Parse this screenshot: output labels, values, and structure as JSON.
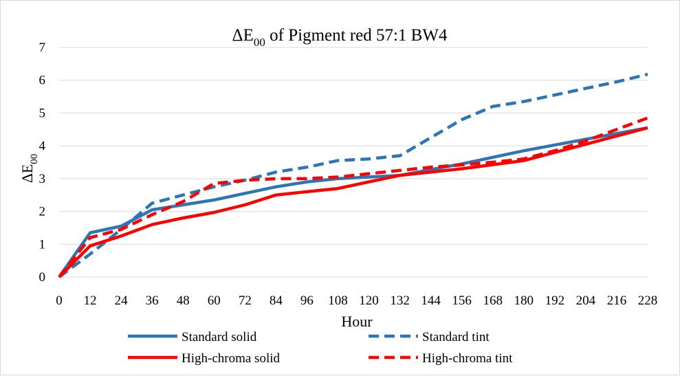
{
  "chart_data": {
    "type": "line",
    "title": {
      "main": "ΔE",
      "sub": "00",
      "rest": " of Pigment red 57:1 BW4"
    },
    "xlabel": "Hour",
    "ylabel": {
      "main": "ΔE",
      "sub": "00"
    },
    "x": [
      0,
      12,
      24,
      36,
      48,
      60,
      72,
      84,
      96,
      108,
      120,
      132,
      144,
      156,
      168,
      180,
      192,
      204,
      216,
      228
    ],
    "xlim": [
      0,
      228
    ],
    "ylim": [
      0,
      7
    ],
    "yticks": [
      0,
      1,
      2,
      3,
      4,
      5,
      6,
      7
    ],
    "grid": "horizontal",
    "legend_position": "bottom",
    "series": [
      {
        "name": "Standard solid",
        "color": "#2e75b6",
        "dash": "solid",
        "points": [
          [
            0,
            0
          ],
          [
            12,
            1.35
          ],
          [
            24,
            1.55
          ],
          [
            36,
            2.05
          ],
          [
            48,
            2.2
          ],
          [
            60,
            2.35
          ],
          [
            72,
            2.55
          ],
          [
            84,
            2.75
          ],
          [
            96,
            2.9
          ],
          [
            108,
            3.0
          ],
          [
            132,
            3.1
          ],
          [
            156,
            3.45
          ],
          [
            180,
            3.85
          ],
          [
            204,
            4.2
          ],
          [
            228,
            4.55
          ]
        ]
      },
      {
        "name": "Standard tint",
        "color": "#2e75b6",
        "dash": "dashed",
        "points": [
          [
            0,
            0
          ],
          [
            12,
            0.7
          ],
          [
            24,
            1.45
          ],
          [
            36,
            2.25
          ],
          [
            48,
            2.5
          ],
          [
            60,
            2.75
          ],
          [
            72,
            2.95
          ],
          [
            84,
            3.2
          ],
          [
            96,
            3.35
          ],
          [
            108,
            3.55
          ],
          [
            120,
            3.6
          ],
          [
            132,
            3.7
          ],
          [
            144,
            4.25
          ],
          [
            156,
            4.8
          ],
          [
            168,
            5.2
          ],
          [
            180,
            5.35
          ],
          [
            192,
            5.55
          ],
          [
            204,
            5.75
          ],
          [
            216,
            5.95
          ],
          [
            228,
            6.18
          ]
        ]
      },
      {
        "name": "High-chroma solid",
        "color": "#ff0000",
        "dash": "solid",
        "points": [
          [
            0,
            0
          ],
          [
            12,
            0.95
          ],
          [
            24,
            1.25
          ],
          [
            36,
            1.6
          ],
          [
            48,
            1.8
          ],
          [
            60,
            1.97
          ],
          [
            72,
            2.2
          ],
          [
            84,
            2.5
          ],
          [
            96,
            2.6
          ],
          [
            108,
            2.7
          ],
          [
            120,
            2.9
          ],
          [
            132,
            3.1
          ],
          [
            156,
            3.3
          ],
          [
            180,
            3.55
          ],
          [
            204,
            4.05
          ],
          [
            228,
            4.55
          ]
        ]
      },
      {
        "name": "High-chroma tint",
        "color": "#ff0000",
        "dash": "dashed",
        "points": [
          [
            0,
            0
          ],
          [
            12,
            1.2
          ],
          [
            24,
            1.45
          ],
          [
            36,
            1.9
          ],
          [
            48,
            2.3
          ],
          [
            60,
            2.85
          ],
          [
            72,
            2.95
          ],
          [
            84,
            3.0
          ],
          [
            96,
            3.0
          ],
          [
            108,
            3.05
          ],
          [
            120,
            3.15
          ],
          [
            132,
            3.25
          ],
          [
            144,
            3.35
          ],
          [
            156,
            3.42
          ],
          [
            168,
            3.5
          ],
          [
            180,
            3.6
          ],
          [
            192,
            3.85
          ],
          [
            204,
            4.15
          ],
          [
            216,
            4.5
          ],
          [
            228,
            4.85
          ]
        ]
      }
    ]
  }
}
